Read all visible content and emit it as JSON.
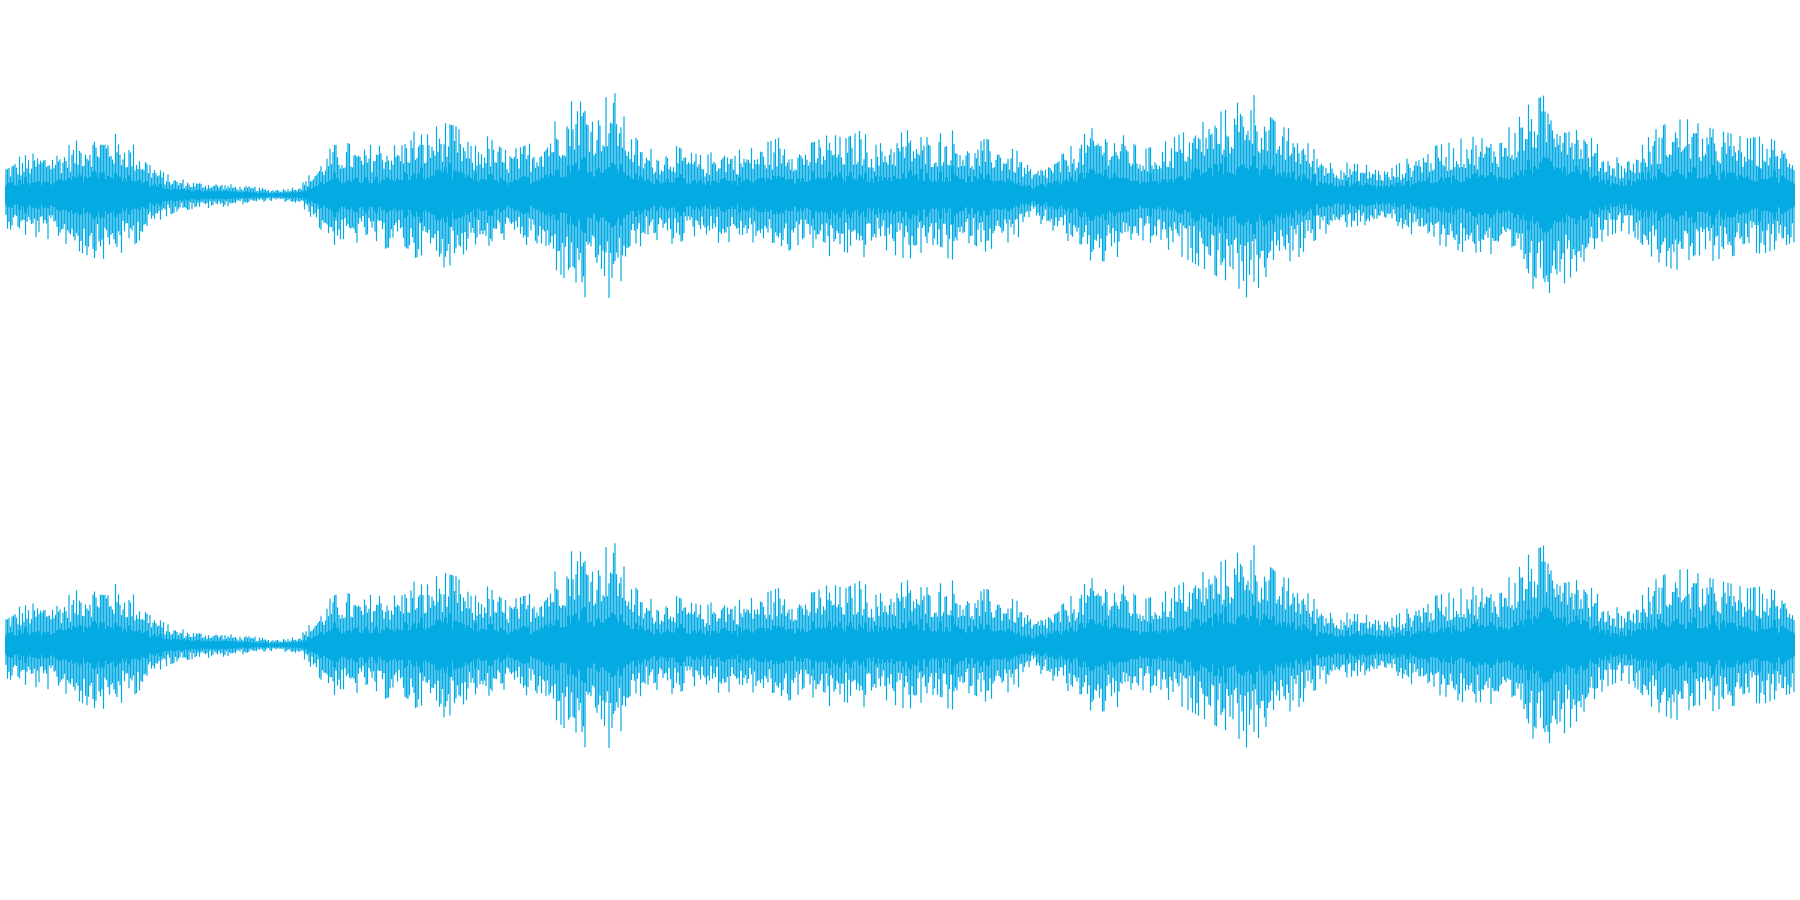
{
  "waveform": {
    "color": "#04ABE3",
    "channels": [
      {
        "id": "channel-1"
      },
      {
        "id": "channel-2"
      }
    ],
    "envelope": [
      0.28,
      0.33,
      0.36,
      0.38,
      0.42,
      0.5,
      0.55,
      0.52,
      0.45,
      0.34,
      0.2,
      0.14,
      0.12,
      0.11,
      0.1,
      0.08,
      0.07,
      0.05,
      0.06,
      0.09,
      0.25,
      0.42,
      0.44,
      0.38,
      0.48,
      0.42,
      0.55,
      0.5,
      0.62,
      0.58,
      0.4,
      0.5,
      0.38,
      0.4,
      0.45,
      0.58,
      0.72,
      0.92,
      0.7,
      0.92,
      0.58,
      0.4,
      0.38,
      0.42,
      0.36,
      0.33,
      0.42,
      0.38,
      0.4,
      0.45,
      0.5,
      0.42,
      0.45,
      0.52,
      0.48,
      0.55,
      0.42,
      0.5,
      0.55,
      0.48,
      0.52,
      0.55,
      0.4,
      0.48,
      0.42,
      0.38,
      0.2,
      0.28,
      0.35,
      0.48,
      0.58,
      0.55,
      0.5,
      0.38,
      0.42,
      0.48,
      0.55,
      0.62,
      0.7,
      0.75,
      0.9,
      0.7,
      0.58,
      0.55,
      0.4,
      0.32,
      0.28,
      0.26,
      0.25,
      0.22,
      0.3,
      0.38,
      0.42,
      0.45,
      0.5,
      0.48,
      0.52,
      0.6,
      0.78,
      0.85,
      0.78,
      0.65,
      0.48,
      0.35,
      0.3,
      0.38,
      0.55,
      0.62,
      0.65,
      0.6,
      0.55,
      0.52,
      0.48,
      0.5,
      0.45,
      0.4
    ]
  }
}
